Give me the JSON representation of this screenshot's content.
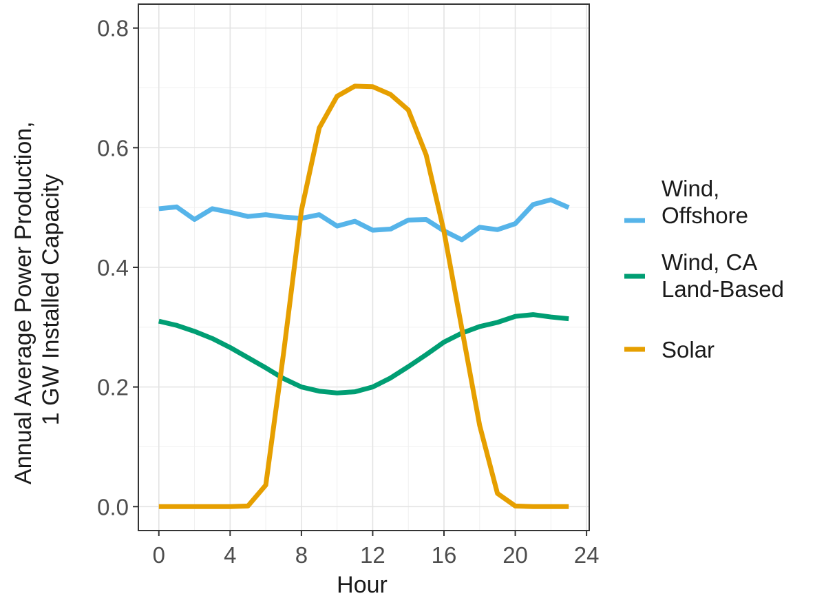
{
  "chart_data": {
    "type": "line",
    "xlabel": "Hour",
    "ylabel": [
      "Annual Average Power Production,",
      "1 GW Installed Capacity"
    ],
    "xlim": [
      -1.15,
      24.15
    ],
    "ylim": [
      -0.04,
      0.84
    ],
    "x_ticks": [
      0,
      4,
      8,
      12,
      16,
      20,
      24
    ],
    "x_tick_labels": [
      "0",
      "4",
      "8",
      "12",
      "16",
      "20",
      "24"
    ],
    "y_ticks": [
      0.0,
      0.2,
      0.4,
      0.6,
      0.8
    ],
    "y_tick_labels": [
      "0.0",
      "0.2",
      "0.4",
      "0.6",
      "0.8"
    ],
    "grid": true,
    "legend_position": "right",
    "x": [
      0,
      1,
      2,
      3,
      4,
      5,
      6,
      7,
      8,
      9,
      10,
      11,
      12,
      13,
      14,
      15,
      16,
      17,
      18,
      19,
      20,
      21,
      22,
      23
    ],
    "series": [
      {
        "key": "wind-offshore",
        "label_lines": [
          "Wind,",
          "Offshore"
        ],
        "color": "#56B4E9",
        "values": [
          0.498,
          0.501,
          0.48,
          0.498,
          0.492,
          0.485,
          0.488,
          0.484,
          0.482,
          0.488,
          0.469,
          0.477,
          0.462,
          0.464,
          0.479,
          0.48,
          0.461,
          0.446,
          0.467,
          0.463,
          0.473,
          0.505,
          0.513,
          0.5
        ]
      },
      {
        "key": "wind-ca-land-based",
        "label_lines": [
          "Wind, CA",
          "Land-Based"
        ],
        "color": "#009E73",
        "values": [
          0.31,
          0.303,
          0.293,
          0.281,
          0.266,
          0.249,
          0.232,
          0.214,
          0.2,
          0.193,
          0.19,
          0.192,
          0.2,
          0.215,
          0.234,
          0.254,
          0.275,
          0.29,
          0.301,
          0.308,
          0.318,
          0.321,
          0.317,
          0.314
        ]
      },
      {
        "key": "solar",
        "label_lines": [
          "Solar"
        ],
        "color": "#E69F00",
        "values": [
          0.0,
          0.0,
          0.0,
          0.0,
          0.0,
          0.001,
          0.036,
          0.257,
          0.495,
          0.633,
          0.686,
          0.703,
          0.702,
          0.689,
          0.663,
          0.588,
          0.46,
          0.298,
          0.136,
          0.022,
          0.001,
          0.0,
          0.0,
          0.0
        ]
      }
    ]
  }
}
